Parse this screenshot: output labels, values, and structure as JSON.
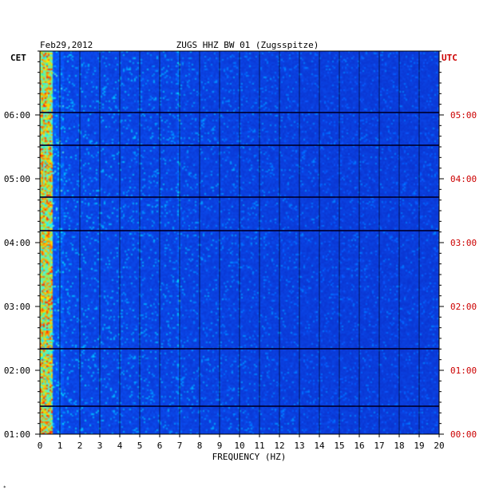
{
  "chart_data": {
    "type": "heatmap",
    "title_date": "Feb29,2012",
    "title_station": "ZUGS HHZ BW 01 (Zugsspitze)",
    "xlabel": "FREQUENCY (HZ)",
    "xlim": [
      0,
      20
    ],
    "x_ticks": [
      "0",
      "1",
      "2",
      "3",
      "4",
      "5",
      "6",
      "7",
      "8",
      "9",
      "10",
      "11",
      "12",
      "13",
      "14",
      "15",
      "16",
      "17",
      "18",
      "19",
      "20"
    ],
    "left_axis_label": "CET",
    "right_axis_label": "UTC",
    "left_ticks": [
      "01:00",
      "02:00",
      "03:00",
      "04:00",
      "05:00",
      "06:00"
    ],
    "right_ticks": [
      "00:00",
      "01:00",
      "02:00",
      "03:00",
      "04:00",
      "05:00"
    ],
    "time_range_utc": [
      "00:00",
      "05:50"
    ],
    "colors": {
      "background_low": "#0a2fd8",
      "mid": "#00c8ff",
      "high": "#ffff00",
      "peak": "#ff2000",
      "gap": "#000033",
      "utc_text": "#cc0000"
    }
  },
  "footer_mark": "*"
}
